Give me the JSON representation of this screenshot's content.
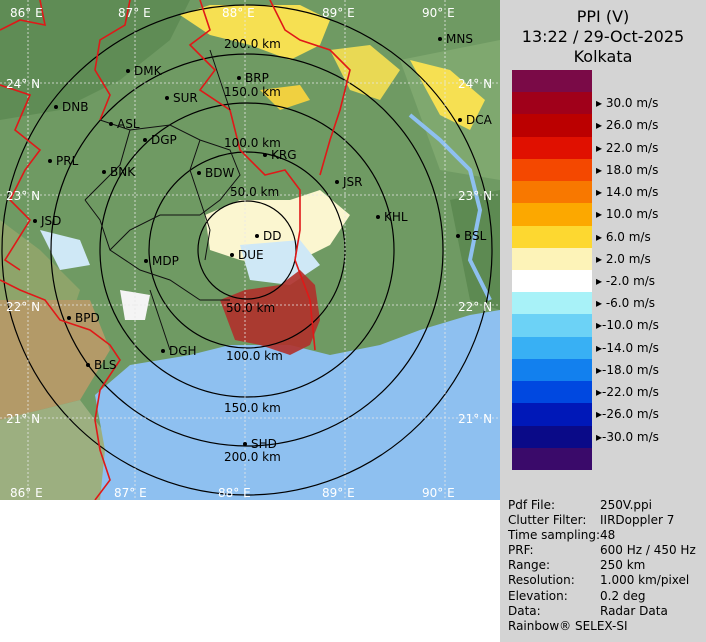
{
  "header": {
    "product": "PPI (V)",
    "datetime": "13:22 / 29-Oct-2025",
    "station": "Kolkata"
  },
  "legend": {
    "items": [
      {
        "color": "#7a0a47",
        "label": ""
      },
      {
        "color": "#a0001a",
        "label": " 30.0 m/s"
      },
      {
        "color": "#bb0000",
        "label": " 26.0 m/s"
      },
      {
        "color": "#e01000",
        "label": " 22.0 m/s"
      },
      {
        "color": "#f44800",
        "label": " 18.0 m/s"
      },
      {
        "color": "#f87800",
        "label": " 14.0 m/s"
      },
      {
        "color": "#fca800",
        "label": " 10.0 m/s"
      },
      {
        "color": "#fdd830",
        "label": "  6.0 m/s"
      },
      {
        "color": "#fdf3b8",
        "label": "  2.0 m/s"
      },
      {
        "color": "#ffffff",
        "label": " -2.0 m/s"
      },
      {
        "color": "#a8f2f8",
        "label": " -6.0 m/s"
      },
      {
        "color": "#6cd2f6",
        "label": "-10.0 m/s"
      },
      {
        "color": "#38b0f4",
        "label": "-14.0 m/s"
      },
      {
        "color": "#1280ee",
        "label": "-18.0 m/s"
      },
      {
        "color": "#0048e0",
        "label": "-22.0 m/s"
      },
      {
        "color": "#0018b8",
        "label": "-26.0 m/s"
      },
      {
        "color": "#0a0a88",
        "label": "-30.0 m/s"
      },
      {
        "color": "#3a0a6a",
        "label": ""
      }
    ]
  },
  "metadata": [
    {
      "key": "Pdf File:",
      "value": "250V.ppi"
    },
    {
      "key": "Clutter Filter:",
      "value": "IIRDoppler 7"
    },
    {
      "key": "Time sampling:",
      "value": "48"
    },
    {
      "key": "PRF:",
      "value": "600 Hz / 450 Hz"
    },
    {
      "key": "Range:",
      "value": "250 km"
    },
    {
      "key": "Resolution:",
      "value": "1.000 km/pixel"
    },
    {
      "key": "Elevation:",
      "value": "0.2 deg"
    },
    {
      "key": "Data:",
      "value": "Radar Data"
    }
  ],
  "credit": "Rainbow® SELEX-SI",
  "map": {
    "range_rings": [
      {
        "label": "50.0 km"
      },
      {
        "label": "100.0 km"
      },
      {
        "label": "150.0 km"
      },
      {
        "label": "200.0 km"
      }
    ],
    "lat_labels": [
      "24° N",
      "23° N",
      "22° N",
      "21° N"
    ],
    "lon_labels": [
      "86° E",
      "87° E",
      "88° E",
      "89° E",
      "90° E"
    ],
    "cities": [
      "MNS",
      "DMK",
      "BRP",
      "DNB",
      "SUR",
      "ASL",
      "DGP",
      "DCA",
      "PRL",
      "KRG",
      "BNK",
      "BDW",
      "JSR",
      "KHL",
      "JSD",
      "DD",
      "BSL",
      "MDP",
      "DUE",
      "BPD",
      "DGH",
      "BLS",
      "SHD"
    ]
  }
}
